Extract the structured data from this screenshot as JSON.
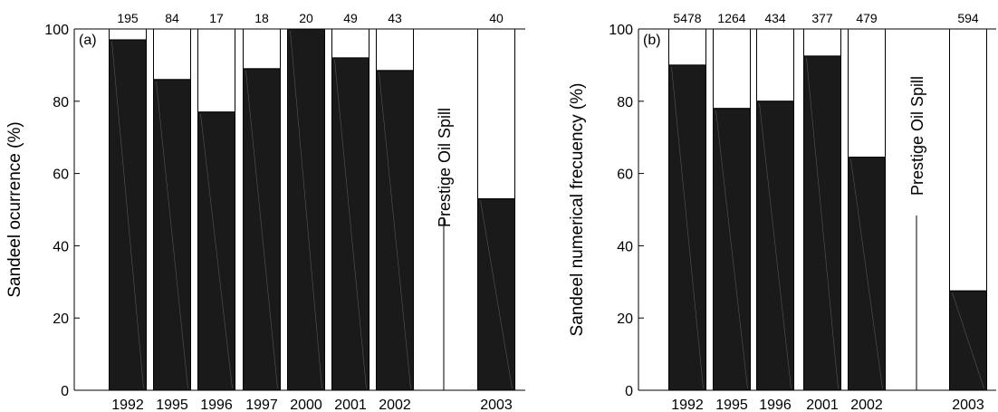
{
  "chart_data": [
    {
      "type": "bar",
      "panel_label": "(a)",
      "ylabel": "Sandeel ocurrence (%)",
      "ylim": [
        0,
        100
      ],
      "yticks": [
        "0",
        "20",
        "40",
        "60",
        "80",
        "100"
      ],
      "categories": [
        "1992",
        "1995",
        "1996",
        "1997",
        "2000",
        "2001",
        "2002",
        "2003"
      ],
      "values": [
        97,
        86,
        77,
        89,
        100,
        92,
        88.5,
        53
      ],
      "sample_sizes": [
        "195",
        "84",
        "17",
        "18",
        "20",
        "49",
        "43",
        "40"
      ],
      "annotation": "Prestige Oil Spill",
      "grid": false
    },
    {
      "type": "bar",
      "panel_label": "(b)",
      "ylabel": "Sandeel numerical frecuency (%)",
      "ylim": [
        0,
        100
      ],
      "yticks": [
        "0",
        "20",
        "40",
        "60",
        "80",
        "100"
      ],
      "categories": [
        "1992",
        "1995",
        "1996",
        "2001",
        "2002",
        "2003"
      ],
      "values": [
        90,
        78,
        80,
        92.5,
        64.5,
        27.5
      ],
      "sample_sizes": [
        "5478",
        "1264",
        "434",
        "377",
        "479",
        "594"
      ],
      "annotation": "Prestige Oil Spill",
      "grid": false
    }
  ],
  "colors": {
    "bar_fill": "#1a1a1a",
    "bar_remainder": "#ffffff",
    "axis": "#000000"
  }
}
